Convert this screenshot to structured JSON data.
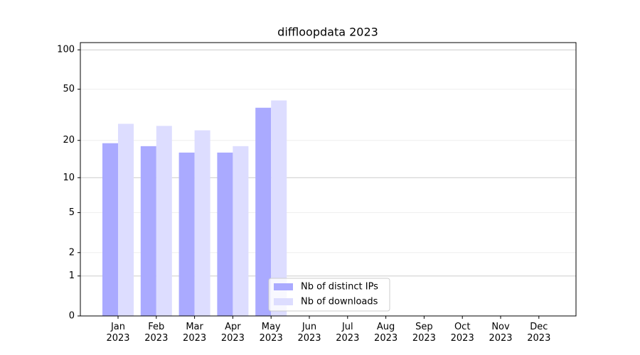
{
  "chart_data": {
    "type": "bar",
    "title": "diffloopdata 2023",
    "categories": [
      "Jan 2023",
      "Feb 2023",
      "Mar 2023",
      "Apr 2023",
      "May 2023",
      "Jun 2023",
      "Jul 2023",
      "Aug 2023",
      "Sep 2023",
      "Oct 2023",
      "Nov 2023",
      "Dec 2023"
    ],
    "series": [
      {
        "name": "Nb of distinct IPs",
        "color": "#aaaaff",
        "values": [
          19,
          18,
          16,
          16,
          36,
          0,
          0,
          0,
          0,
          0,
          0,
          0
        ]
      },
      {
        "name": "Nb of downloads",
        "color": "#ddddff",
        "values": [
          27,
          26,
          24,
          18,
          41,
          0,
          0,
          0,
          0,
          0,
          0,
          0
        ]
      }
    ],
    "yscale": "log1p",
    "ylim": [
      0,
      113.5
    ],
    "yticks": [
      0,
      1,
      2,
      5,
      10,
      20,
      50,
      100
    ],
    "grid": true,
    "legend": "lower center"
  }
}
